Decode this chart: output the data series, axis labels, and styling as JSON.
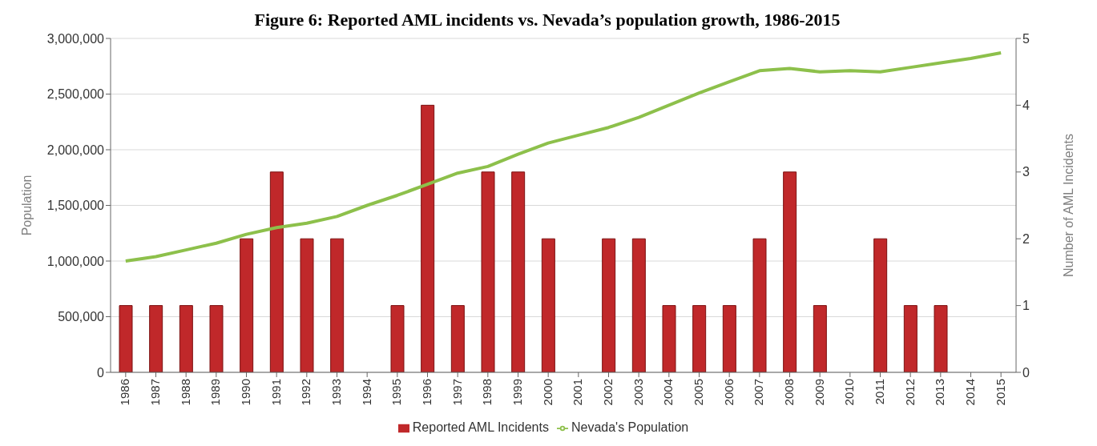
{
  "chart_data": {
    "type": "bar",
    "title": "Figure 6: Reported AML incidents vs. Nevada’s population growth, 1986-2015",
    "categories": [
      "1986",
      "1987",
      "1988",
      "1989",
      "1990",
      "1991",
      "1992",
      "1993",
      "1994",
      "1995",
      "1996",
      "1997",
      "1998",
      "1999",
      "2000",
      "2001",
      "2002",
      "2003",
      "2004",
      "2005",
      "2006",
      "2007",
      "2008",
      "2009",
      "2010",
      "2011",
      "2012",
      "2013",
      "2014",
      "2015"
    ],
    "series": [
      {
        "name": "Reported AML Incidents",
        "axis": "y2",
        "color": "#c0282a",
        "values": [
          1,
          1,
          1,
          1,
          2,
          3,
          2,
          2,
          0,
          1,
          4,
          1,
          3,
          3,
          2,
          0,
          2,
          2,
          1,
          1,
          1,
          2,
          3,
          1,
          0,
          2,
          1,
          1,
          0,
          0
        ]
      },
      {
        "name": "Nevada's Population",
        "type": "line",
        "axis": "y",
        "color": "#8dc04b",
        "values": [
          1000000,
          1040000,
          1100000,
          1160000,
          1240000,
          1300000,
          1340000,
          1400000,
          1500000,
          1590000,
          1690000,
          1790000,
          1850000,
          1960000,
          2060000,
          2130000,
          2200000,
          2290000,
          2400000,
          2510000,
          2610000,
          2710000,
          2730000,
          2700000,
          2710000,
          2700000,
          2740000,
          2780000,
          2820000,
          2870000
        ]
      }
    ],
    "ylabel": "Population",
    "y2label": "Number of AML Incidents",
    "ylim": [
      0,
      3000000
    ],
    "yticks": [
      0,
      {
        "value": 500000,
        "label": "500,000"
      },
      {
        "value": 1000000,
        "label": "1,000,000"
      },
      {
        "value": 1500000,
        "label": "1,500,000"
      },
      {
        "value": 2000000,
        "label": "2,000,000"
      },
      {
        "value": 2500000,
        "label": "2,500,000"
      },
      {
        "value": 3000000,
        "label": "3,000,000"
      }
    ],
    "y2lim": [
      0,
      5
    ],
    "y2ticks": [
      0,
      1,
      2,
      3,
      4,
      5
    ],
    "grid": "y",
    "legend": "bottom",
    "marker": "none"
  }
}
